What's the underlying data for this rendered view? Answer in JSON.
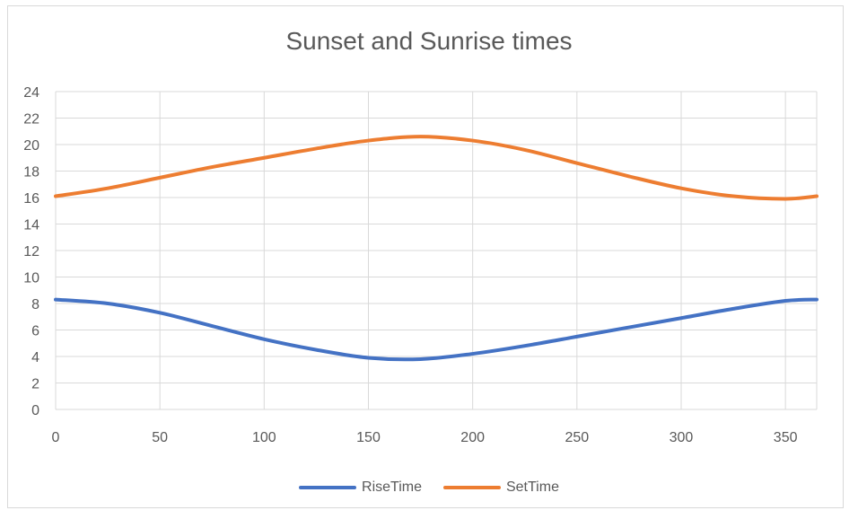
{
  "chart_data": {
    "type": "line",
    "title": "Sunset and Sunrise times",
    "xlabel": "",
    "ylabel": "",
    "xlim": [
      0,
      365
    ],
    "ylim": [
      0,
      24
    ],
    "x_ticks": [
      0,
      50,
      100,
      150,
      200,
      250,
      300,
      350
    ],
    "y_ticks": [
      0,
      2,
      4,
      6,
      8,
      10,
      12,
      14,
      16,
      18,
      20,
      22,
      24
    ],
    "grid": true,
    "legend_position": "bottom",
    "x": [
      0,
      25,
      50,
      75,
      100,
      125,
      150,
      175,
      200,
      225,
      250,
      275,
      300,
      325,
      350,
      365
    ],
    "series": [
      {
        "name": "RiseTime",
        "color": "#4472c4",
        "values": [
          8.3,
          8.0,
          7.3,
          6.3,
          5.3,
          4.5,
          3.9,
          3.8,
          4.2,
          4.8,
          5.5,
          6.2,
          6.9,
          7.6,
          8.2,
          8.3
        ]
      },
      {
        "name": "SetTime",
        "color": "#ed7d31",
        "values": [
          16.1,
          16.7,
          17.5,
          18.3,
          19.0,
          19.7,
          20.3,
          20.6,
          20.3,
          19.6,
          18.6,
          17.6,
          16.7,
          16.1,
          15.9,
          16.1
        ]
      }
    ]
  }
}
